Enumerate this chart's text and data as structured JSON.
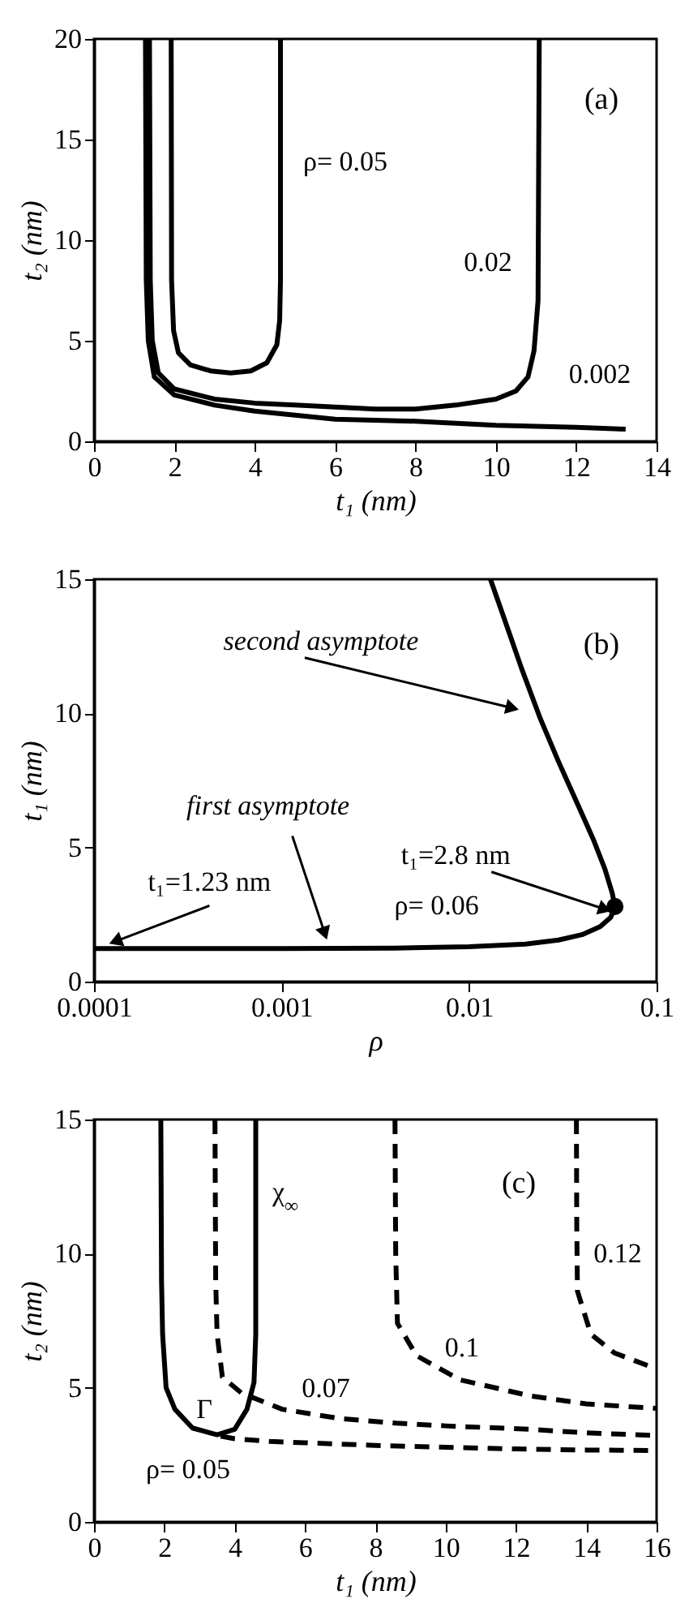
{
  "chart_data": [
    {
      "type": "line",
      "xlabel": "t₁ (nm)",
      "ylabel": "t₂ (nm)",
      "xlim": [
        0,
        14
      ],
      "ylim": [
        0,
        20
      ],
      "xticks": [
        0,
        2,
        4,
        6,
        8,
        10,
        12,
        14
      ],
      "yticks": [
        0,
        5,
        10,
        15,
        20
      ],
      "grid": false,
      "marker": "none",
      "line_style": "solid",
      "annotations": [
        "(a)",
        "ρ= 0.05",
        "0.02",
        "0.002"
      ],
      "series": [
        {
          "color": "#000000",
          "x": [
            1.92,
            1.93,
            1.98,
            2.1,
            2.4,
            2.9,
            3.4,
            3.9,
            4.3,
            4.55,
            4.62,
            4.64,
            4.64
          ],
          "values": [
            20,
            8,
            5.5,
            4.4,
            3.8,
            3.5,
            3.4,
            3.5,
            3.9,
            4.8,
            6,
            8,
            20
          ]
        },
        {
          "color": "#000000",
          "x": [
            1.38,
            1.4,
            1.45,
            1.6,
            2,
            3,
            4,
            5,
            6,
            7,
            8,
            9,
            10,
            10.5,
            10.8,
            10.95,
            11.05,
            11.08
          ],
          "values": [
            20,
            8,
            5,
            3.4,
            2.6,
            2.1,
            1.9,
            1.8,
            1.7,
            1.6,
            1.6,
            1.8,
            2.1,
            2.5,
            3.2,
            4.5,
            7,
            20
          ]
        },
        {
          "color": "#000000",
          "x": [
            1.28,
            1.3,
            1.35,
            1.5,
            2,
            3,
            4,
            5,
            6,
            8,
            10,
            12,
            13.23
          ],
          "values": [
            20,
            8,
            5,
            3.2,
            2.3,
            1.8,
            1.5,
            1.3,
            1.1,
            1.0,
            0.8,
            0.7,
            0.6
          ]
        }
      ]
    },
    {
      "type": "line",
      "xlabel": "ρ",
      "ylabel": "t₁ (nm)",
      "log": "x",
      "xlim": [
        0.0001,
        0.1
      ],
      "ylim": [
        0,
        15
      ],
      "xticks": [
        0.0001,
        0.001,
        0.01,
        0.1
      ],
      "yticks": [
        0,
        5,
        10,
        15
      ],
      "grid": false,
      "marker": "none",
      "line_style": "solid",
      "annotations": [
        "(b)",
        {
          "text": "second asymptote",
          "x": 0.017,
          "y": 10.2
        },
        {
          "text": "first asymptote",
          "x": 0.0017,
          "y": 1.8
        },
        {
          "text": "t₁=1.23 nm",
          "x": 0.00013,
          "y": 1.5
        },
        {
          "text": "t₁=2.8 nm",
          "x": 0.053,
          "y": 2.7
        },
        {
          "text": "ρ= 0.06",
          "x": 0.06,
          "y": 2.8
        }
      ],
      "series": [
        {
          "color": "#000000",
          "x": [
            0.0001,
            0.001,
            0.004,
            0.01,
            0.02,
            0.03,
            0.04,
            0.05,
            0.057,
            0.06,
            0.058,
            0.053,
            0.046,
            0.038,
            0.03,
            0.024,
            0.019,
            0.016,
            0.013
          ],
          "values": [
            1.23,
            1.23,
            1.25,
            1.3,
            1.4,
            1.55,
            1.75,
            2.05,
            2.4,
            2.8,
            3.3,
            4.2,
            5.3,
            6.6,
            8.2,
            9.8,
            11.7,
            13.2,
            15
          ]
        },
        {
          "type": "scatter",
          "color": "#000000",
          "marker": "circle",
          "x": [
            0.06
          ],
          "values": [
            2.8
          ]
        }
      ]
    },
    {
      "type": "line",
      "xlabel": "t₁ (nm)",
      "ylabel": "t₂ (nm)",
      "xlim": [
        0,
        16
      ],
      "ylim": [
        0,
        15
      ],
      "xticks": [
        0,
        2,
        4,
        6,
        8,
        10,
        12,
        14,
        16
      ],
      "yticks": [
        0,
        5,
        10,
        15
      ],
      "grid": false,
      "marker": "none",
      "annotations": [
        "(c)",
        "χ$_{∞}$",
        "0.12",
        "0.1",
        "0.07",
        "Γ",
        "ρ= 0.05"
      ],
      "series": [
        {
          "color": "#000000",
          "line_style": "solid",
          "x": [
            1.9,
            1.92,
            1.95,
            2.05,
            2.3,
            2.8,
            3.5,
            4,
            4.35,
            4.55,
            4.6,
            4.6
          ],
          "values": [
            15,
            9,
            7,
            5,
            4.2,
            3.5,
            3.25,
            3.45,
            4.2,
            5.2,
            7,
            15
          ]
        },
        {
          "color": "#000000",
          "line_style": "dashed",
          "x": [
            3.6,
            4,
            5,
            6,
            8,
            10,
            12,
            14,
            16
          ],
          "values": [
            3.2,
            3.1,
            3,
            2.95,
            2.85,
            2.78,
            2.72,
            2.68,
            2.66
          ]
        },
        {
          "color": "#000000",
          "line_style": "dashed",
          "x": [
            3.44,
            3.46,
            3.5,
            3.65,
            4.2,
            5.35,
            7,
            8.6,
            10,
            12.4,
            14,
            16
          ],
          "values": [
            15,
            9,
            7,
            5.4,
            4.8,
            4.2,
            3.85,
            3.68,
            3.58,
            3.45,
            3.32,
            3.22
          ]
        },
        {
          "color": "#000000",
          "line_style": "dashed",
          "x": [
            8.56,
            8.58,
            8.63,
            9.17,
            10.4,
            12.4,
            14,
            16
          ],
          "values": [
            15,
            10,
            7.4,
            6.2,
            5.3,
            4.7,
            4.4,
            4.23
          ]
        },
        {
          "color": "#000000",
          "line_style": "dashed",
          "x": [
            13.72,
            13.73,
            13.75,
            14.13,
            14.8,
            16
          ],
          "values": [
            15,
            11,
            8.6,
            7,
            6.3,
            5.7
          ]
        }
      ]
    }
  ]
}
